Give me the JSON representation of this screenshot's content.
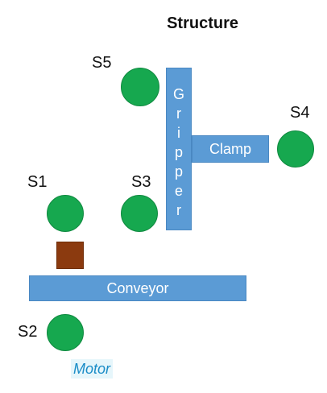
{
  "title": "Structure",
  "sensors": {
    "s1": "S1",
    "s2": "S2",
    "s3": "S3",
    "s4": "S4",
    "s5": "S5"
  },
  "gripper": {
    "letters": [
      "G",
      "r",
      "i",
      "p",
      "p",
      "e",
      "r"
    ]
  },
  "clamp": "Clamp",
  "conveyor": "Conveyor",
  "motor": "Motor",
  "colors": {
    "sensor": "#16a84f",
    "bar": "#5b9bd5",
    "box": "#8b3a0f",
    "motor_text": "#1a8cc7"
  }
}
